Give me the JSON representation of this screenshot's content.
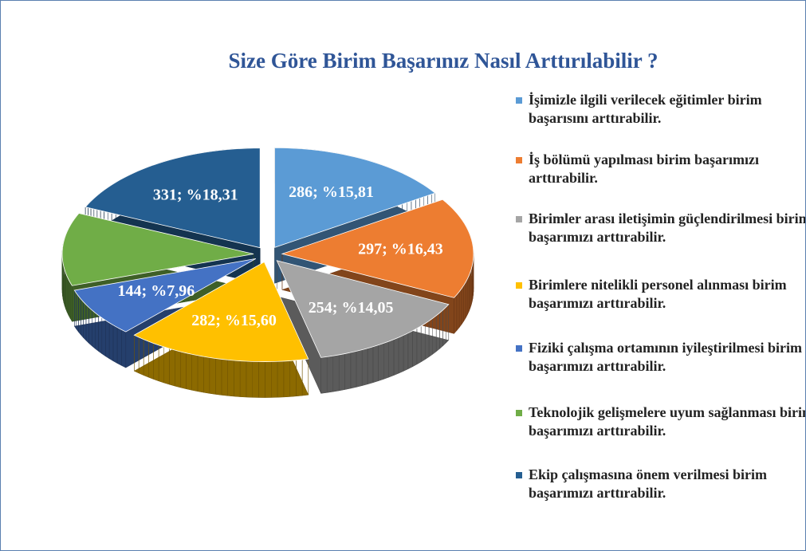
{
  "chart_data": {
    "type": "pie",
    "title": "Size Göre Birim Başarınız Nasıl Arttırılabilir ?",
    "categories": [
      "İşimizle ilgili verilecek eğitimler birim başarısını arttırabilir.",
      "İş bölümü yapılması birim başarımızı arttırabilir.",
      "Birimler arası iletişimin güçlendirilmesi birim başarımızı arttırabilir.",
      "Birimlere nitelikli personel alınması birim başarımızı arttırabilir.",
      "Fiziki çalışma ortamının iyileştirilmesi birim başarımızı arttırabilir.",
      "Teknolojik gelişmelere uyum sağlanması birim başarımızı arttırabilir.",
      "Ekip çalışmasına önem verilmesi birim başarımızı arttırabilir."
    ],
    "values": [
      286,
      297,
      254,
      282,
      144,
      214,
      331
    ],
    "value_labels": [
      "286; %15,81",
      "297; %16,43",
      "254; %14,05",
      "282; %15,60",
      "144; %7,96",
      null,
      "331; %18,31"
    ],
    "colors": [
      "#5b9bd5",
      "#ed7d31",
      "#a5a5a5",
      "#ffc000",
      "#4472c4",
      "#70ad47",
      "#255e91"
    ]
  }
}
